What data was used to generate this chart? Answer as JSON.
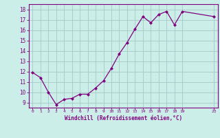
{
  "x": [
    0,
    1,
    2,
    3,
    4,
    5,
    6,
    7,
    8,
    9,
    10,
    11,
    12,
    13,
    14,
    15,
    16,
    17,
    18,
    19,
    23
  ],
  "y": [
    11.9,
    11.4,
    10.0,
    8.8,
    9.3,
    9.4,
    9.8,
    9.8,
    10.4,
    11.1,
    12.3,
    13.7,
    14.8,
    16.1,
    17.3,
    16.7,
    17.5,
    17.8,
    16.5,
    17.8,
    17.3
  ],
  "xlim": [
    -0.5,
    23.5
  ],
  "ylim": [
    8.5,
    18.5
  ],
  "xticks": [
    0,
    1,
    2,
    3,
    4,
    5,
    6,
    7,
    8,
    9,
    10,
    11,
    12,
    13,
    14,
    15,
    16,
    17,
    18,
    19,
    23
  ],
  "yticks": [
    9,
    10,
    11,
    12,
    13,
    14,
    15,
    16,
    17,
    18
  ],
  "xlabel": "Windchill (Refroidissement éolien,°C)",
  "line_color": "#800080",
  "marker_color": "#800080",
  "bg_color": "#cceee8",
  "grid_color": "#aacccc",
  "axis_color": "#800080",
  "tick_color": "#800080",
  "label_color": "#800080"
}
